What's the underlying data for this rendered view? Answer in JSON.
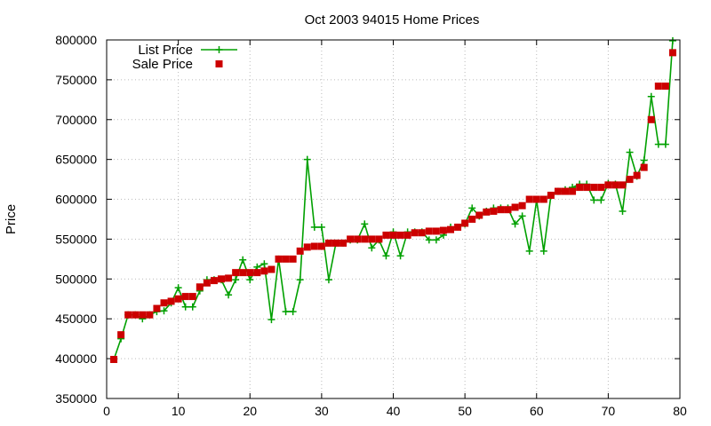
{
  "chart_data": {
    "type": "line",
    "title": "Oct 2003 94015 Home Prices",
    "xlabel": "",
    "ylabel": "Price",
    "xlim": [
      0,
      80
    ],
    "ylim": [
      350000,
      800000
    ],
    "x_ticks": [
      0,
      10,
      20,
      30,
      40,
      50,
      60,
      70,
      80
    ],
    "y_ticks": [
      350000,
      400000,
      450000,
      500000,
      550000,
      600000,
      650000,
      700000,
      750000,
      800000
    ],
    "grid": true,
    "legend_position": "top-left",
    "series": [
      {
        "name": "List Price",
        "style": "line+plus",
        "color": "#00a000",
        "x": [
          1,
          2,
          3,
          4,
          5,
          6,
          7,
          8,
          9,
          10,
          11,
          12,
          13,
          14,
          15,
          16,
          17,
          18,
          19,
          20,
          21,
          22,
          23,
          24,
          25,
          26,
          27,
          28,
          29,
          30,
          31,
          32,
          33,
          34,
          35,
          36,
          37,
          38,
          39,
          40,
          41,
          42,
          43,
          44,
          45,
          46,
          47,
          48,
          49,
          50,
          51,
          52,
          53,
          54,
          55,
          56,
          57,
          58,
          59,
          60,
          61,
          62,
          63,
          64,
          65,
          66,
          67,
          68,
          69,
          70,
          71,
          72,
          73,
          74,
          75,
          76,
          77,
          78,
          79
        ],
        "y": [
          399000,
          425000,
          455000,
          455000,
          450000,
          455000,
          459000,
          460000,
          470000,
          489000,
          465000,
          465000,
          485000,
          499000,
          499000,
          499000,
          480000,
          499000,
          524000,
          499000,
          515000,
          519000,
          449000,
          525000,
          459000,
          459000,
          499000,
          650000,
          565000,
          565000,
          499000,
          545000,
          545000,
          549000,
          549000,
          569000,
          539000,
          549000,
          529000,
          559000,
          529000,
          559000,
          559000,
          559000,
          549000,
          549000,
          555000,
          565000,
          565000,
          569000,
          589000,
          579000,
          585000,
          589000,
          589000,
          589000,
          569000,
          579000,
          535000,
          599000,
          535000,
          605000,
          610000,
          612000,
          615000,
          619000,
          619000,
          599000,
          599000,
          620000,
          619000,
          585000,
          659000,
          629000,
          649000,
          729000,
          669000,
          669000,
          799000
        ]
      },
      {
        "name": "Sale Price",
        "style": "square",
        "color": "#cc0000",
        "x": [
          1,
          2,
          3,
          4,
          5,
          6,
          7,
          8,
          9,
          10,
          11,
          12,
          13,
          14,
          15,
          16,
          17,
          18,
          19,
          20,
          21,
          22,
          23,
          24,
          25,
          26,
          27,
          28,
          29,
          30,
          31,
          32,
          33,
          34,
          35,
          36,
          37,
          38,
          39,
          40,
          41,
          42,
          43,
          44,
          45,
          46,
          47,
          48,
          49,
          50,
          51,
          52,
          53,
          54,
          55,
          56,
          57,
          58,
          59,
          60,
          61,
          62,
          63,
          64,
          65,
          66,
          67,
          68,
          69,
          70,
          71,
          72,
          73,
          74,
          75,
          76,
          77,
          78,
          79
        ],
        "y": [
          399000,
          430000,
          455000,
          455000,
          455000,
          455000,
          463000,
          470000,
          472000,
          475000,
          478000,
          478000,
          490000,
          495000,
          498000,
          500000,
          501000,
          508000,
          508000,
          508000,
          508000,
          510000,
          512000,
          525000,
          525000,
          525000,
          535000,
          540000,
          541000,
          541000,
          545000,
          545000,
          545000,
          550000,
          550000,
          550000,
          550000,
          550000,
          555000,
          555000,
          555000,
          555000,
          558000,
          558000,
          560000,
          560000,
          561000,
          562000,
          565000,
          570000,
          575000,
          580000,
          584000,
          585000,
          587000,
          587000,
          590000,
          592000,
          600000,
          600000,
          600000,
          605000,
          610000,
          610000,
          610000,
          615000,
          615000,
          615000,
          615000,
          618000,
          618000,
          618000,
          625000,
          630000,
          640000,
          700000,
          742000,
          742000,
          784000
        ]
      }
    ]
  }
}
